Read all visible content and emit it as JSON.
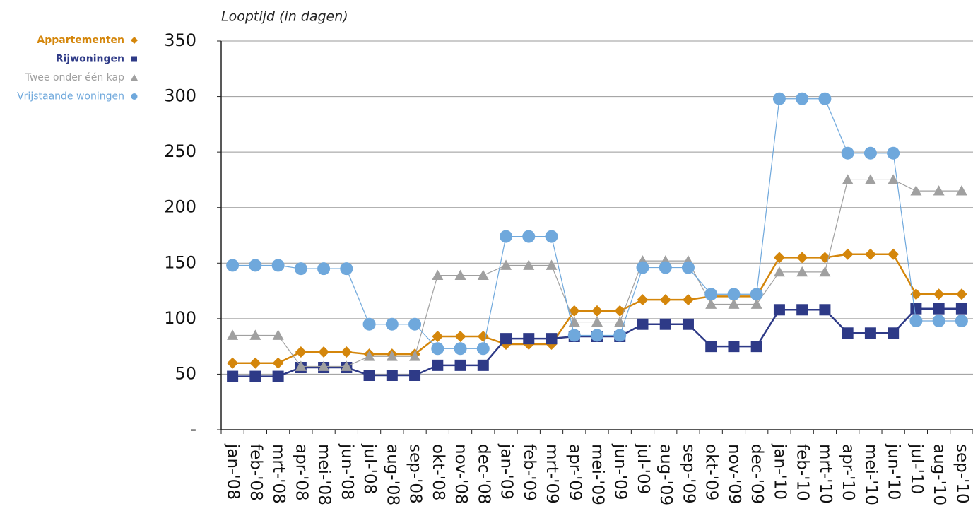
{
  "chart_data": {
    "type": "line",
    "y_axis_title": "Looptijd (in dagen)",
    "categories": [
      "jan-'08",
      "feb-'08",
      "mrt-'08",
      "apr-'08",
      "mei-'08",
      "jun-'08",
      "jul-'08",
      "aug-'08",
      "sep-'08",
      "okt-'08",
      "nov-'08",
      "dec-'08",
      "jan-'09",
      "feb-'09",
      "mrt-'09",
      "apr-'09",
      "mei-'09",
      "jun-'09",
      "jul-'09",
      "aug-'09",
      "sep-'09",
      "okt-'09",
      "nov-'09",
      "dec-'09",
      "jan-'10",
      "feb-'10",
      "mrt-'10",
      "apr-'10",
      "mei-'10",
      "jun-'10",
      "jul-'10",
      "aug-'10",
      "sep-'10"
    ],
    "series": [
      {
        "name": "Appartementen",
        "color": "#d4860b",
        "marker": "diamond",
        "values": [
          60,
          60,
          60,
          70,
          70,
          70,
          68,
          68,
          68,
          84,
          84,
          84,
          77,
          77,
          77,
          107,
          107,
          107,
          117,
          117,
          117,
          120,
          120,
          120,
          155,
          155,
          155,
          158,
          158,
          158,
          122,
          122,
          122
        ]
      },
      {
        "name": "Rijwoningen",
        "color": "#2e3a87",
        "marker": "square",
        "values": [
          48,
          48,
          48,
          56,
          56,
          56,
          49,
          49,
          49,
          58,
          58,
          58,
          82,
          82,
          82,
          84,
          84,
          84,
          95,
          95,
          95,
          75,
          75,
          75,
          108,
          108,
          108,
          87,
          87,
          87,
          109,
          109,
          109
        ]
      },
      {
        "name": "Twee onder één kap",
        "color": "#a0a0a0",
        "marker": "triangle",
        "values": [
          85,
          85,
          85,
          57,
          57,
          57,
          66,
          66,
          66,
          139,
          139,
          139,
          148,
          148,
          148,
          97,
          97,
          97,
          152,
          152,
          152,
          113,
          113,
          113,
          142,
          142,
          142,
          225,
          225,
          225,
          215,
          215,
          215
        ]
      },
      {
        "name": "Vrijstaande woningen",
        "color": "#6fa8dc",
        "marker": "circle",
        "values": [
          148,
          148,
          148,
          145,
          145,
          145,
          95,
          95,
          95,
          73,
          73,
          73,
          174,
          174,
          174,
          85,
          85,
          85,
          146,
          146,
          146,
          122,
          122,
          122,
          298,
          298,
          298,
          249,
          249,
          249,
          98,
          98,
          98
        ]
      }
    ],
    "ylim": [
      0,
      350
    ],
    "yticks": [
      {
        "value": 0,
        "label": "-"
      },
      50,
      100,
      150,
      200,
      250,
      300,
      350
    ],
    "grid": true,
    "legend": "top-left"
  }
}
